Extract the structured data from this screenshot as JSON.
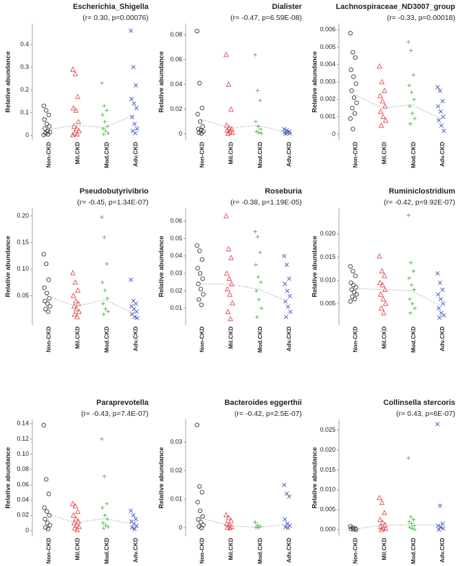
{
  "chart_data": [
    {
      "type": "strip",
      "title": "Escherichia_Shigella",
      "subtitle": "(r= 0.30, p=0.00076)",
      "ylabel": "Relative abundance",
      "categories": [
        "Non-CKD",
        "Mil.CKD",
        "Mod.CKD",
        "Adv.CKD"
      ],
      "colors": [
        "#333333",
        "#e8474b",
        "#4ab54a",
        "#3a4fbf"
      ],
      "markers": [
        "circle",
        "triangle",
        "plus",
        "cross"
      ],
      "values": [
        [
          0.13,
          0.11,
          0.09,
          0.07,
          0.05,
          0.04,
          0.03,
          0.02,
          0.015,
          0.01,
          0.005,
          0.002
        ],
        [
          0.29,
          0.27,
          0.17,
          0.12,
          0.11,
          0.06,
          0.04,
          0.03,
          0.02,
          0.01,
          0.005,
          0.002
        ],
        [
          0.23,
          0.13,
          0.11,
          0.09,
          0.06,
          0.04,
          0.03,
          0.02,
          0.01,
          0.005
        ],
        [
          0.46,
          0.3,
          0.22,
          0.16,
          0.14,
          0.12,
          0.08,
          0.05,
          0.03,
          0.02,
          0.01
        ]
      ],
      "trend": [
        0.025,
        0.045,
        0.035,
        0.09
      ],
      "ylim": [
        -0.01,
        0.48
      ],
      "yticks": [
        0,
        0.1,
        0.2,
        0.3,
        0.4
      ]
    },
    {
      "type": "strip",
      "title": "Dialister",
      "subtitle": "(r= -0.47, p=6.59E-08)",
      "ylabel": "Relative abundance",
      "categories": [
        "Non-CKD",
        "Mil.CKD",
        "Mod.CKD",
        "Adv.CKD"
      ],
      "colors": [
        "#333333",
        "#e8474b",
        "#4ab54a",
        "#3a4fbf"
      ],
      "markers": [
        "circle",
        "triangle",
        "plus",
        "cross"
      ],
      "values": [
        [
          0.083,
          0.041,
          0.021,
          0.016,
          0.01,
          0.006,
          0.004,
          0.003,
          0.002,
          0.001,
          0.0005
        ],
        [
          0.064,
          0.04,
          0.02,
          0.007,
          0.005,
          0.004,
          0.003,
          0.002,
          0.001,
          0.0005
        ],
        [
          0.064,
          0.035,
          0.027,
          0.01,
          0.006,
          0.004,
          0.002,
          0.001,
          0.0005
        ],
        [
          0.004,
          0.003,
          0.002,
          0.0015,
          0.001,
          0.0005,
          0.0002
        ]
      ],
      "trend": [
        0.012,
        0.005,
        0.007,
        0.001
      ],
      "ylim": [
        -0.003,
        0.087
      ],
      "yticks": [
        0,
        0.02,
        0.04,
        0.06,
        0.08
      ]
    },
    {
      "type": "strip",
      "title": "Lachnospiraceae_ND3007_group",
      "subtitle": "(r= -0.33, p=0.00018)",
      "ylabel": "Relative abundance",
      "categories": [
        "Non-CKD",
        "Mil.CKD",
        "Mod.CKD",
        "Adv.CKD"
      ],
      "colors": [
        "#333333",
        "#e8474b",
        "#4ab54a",
        "#3a4fbf"
      ],
      "markers": [
        "circle",
        "triangle",
        "plus",
        "cross"
      ],
      "values": [
        [
          0.0058,
          0.0047,
          0.0044,
          0.0037,
          0.0033,
          0.0029,
          0.0025,
          0.0021,
          0.0018,
          0.0015,
          0.0012,
          0.0009,
          0.0003
        ],
        [
          0.0039,
          0.003,
          0.0025,
          0.0022,
          0.0019,
          0.0016,
          0.0013,
          0.001,
          0.0008,
          0.0005
        ],
        [
          0.0053,
          0.0048,
          0.0034,
          0.0028,
          0.0024,
          0.002,
          0.0016,
          0.0012,
          0.0009,
          0.0006
        ],
        [
          0.0027,
          0.0025,
          0.0019,
          0.0016,
          0.0013,
          0.001,
          0.0008,
          0.0005,
          0.0002
        ]
      ],
      "trend": [
        0.0023,
        0.0015,
        0.0017,
        0.0009
      ],
      "ylim": [
        -0.0002,
        0.0062
      ],
      "yticks": [
        0,
        0.001,
        0.002,
        0.003,
        0.004,
        0.005,
        0.006
      ]
    },
    {
      "type": "strip",
      "title": "Pseudobutyrivibrio",
      "subtitle": "(r= -0.45, p=1.34E-07)",
      "ylabel": "Relative abundance",
      "categories": [
        "Non-CKD",
        "Mil.CKD",
        "Mod.CKD",
        "Adv.CKD"
      ],
      "colors": [
        "#333333",
        "#e8474b",
        "#4ab54a",
        "#3a4fbf"
      ],
      "markers": [
        "circle",
        "triangle",
        "plus",
        "cross"
      ],
      "values": [
        [
          0.128,
          0.11,
          0.08,
          0.065,
          0.055,
          0.045,
          0.04,
          0.035,
          0.03,
          0.025,
          0.02
        ],
        [
          0.093,
          0.075,
          0.06,
          0.05,
          0.04,
          0.035,
          0.03,
          0.025,
          0.02,
          0.015,
          0.01
        ],
        [
          0.198,
          0.16,
          0.11,
          0.075,
          0.06,
          0.045,
          0.035,
          0.025,
          0.02,
          0.015
        ],
        [
          0.08,
          0.04,
          0.035,
          0.03,
          0.025,
          0.02,
          0.015,
          0.01,
          0.008
        ]
      ],
      "trend": [
        0.05,
        0.03,
        0.042,
        0.017
      ],
      "ylim": [
        0,
        0.21
      ],
      "yticks": [
        0.05,
        {
          "value": 0.1,
          "label": "0.10"
        },
        0.15,
        {
          "value": 0.2,
          "label": "0.20"
        }
      ]
    },
    {
      "type": "strip",
      "title": "Roseburia",
      "subtitle": "(r= -0.38, p=1.19E-05)",
      "ylabel": "Relative abundance",
      "categories": [
        "Non-CKD",
        "Mil.CKD",
        "Mod.CKD",
        "Adv.CKD"
      ],
      "colors": [
        "#333333",
        "#e8474b",
        "#4ab54a",
        "#3a4fbf"
      ],
      "markers": [
        "circle",
        "triangle",
        "plus",
        "cross"
      ],
      "values": [
        [
          0.046,
          0.043,
          0.038,
          0.033,
          0.03,
          0.027,
          0.024,
          0.021,
          0.018,
          0.015,
          0.012
        ],
        [
          0.063,
          0.044,
          0.039,
          0.03,
          0.027,
          0.024,
          0.021,
          0.018,
          0.013,
          0.008,
          0.004
        ],
        [
          0.054,
          0.051,
          0.042,
          0.035,
          0.028,
          0.025,
          0.02,
          0.015,
          0.01,
          0.005
        ],
        [
          0.04,
          0.035,
          0.027,
          0.024,
          0.02,
          0.017,
          0.014,
          0.011,
          0.008,
          0.005
        ]
      ],
      "trend": [
        0.024,
        0.024,
        0.021,
        0.014
      ],
      "ylim": [
        0.002,
        0.066
      ],
      "yticks": [
        0.01,
        0.02,
        0.03,
        0.04,
        0.05,
        0.06
      ]
    },
    {
      "type": "strip",
      "title": "Ruminiclostridium",
      "subtitle": "(r= -0.42, p=9.92E-07)",
      "ylabel": "Relative abundance",
      "categories": [
        "Non-CKD",
        "Mil.CKD",
        "Mod.CKD",
        "Adv.CKD"
      ],
      "colors": [
        "#333333",
        "#e8474b",
        "#4ab54a",
        "#3a4fbf"
      ],
      "markers": [
        "circle",
        "triangle",
        "plus",
        "cross"
      ],
      "values": [
        [
          0.013,
          0.012,
          0.011,
          0.0095,
          0.009,
          0.0085,
          0.008,
          0.0075,
          0.007,
          0.0065,
          0.006,
          0.0055
        ],
        [
          0.0152,
          0.012,
          0.011,
          0.0095,
          0.009,
          0.008,
          0.007,
          0.006,
          0.005,
          0.004,
          0.003
        ],
        [
          0.024,
          0.0138,
          0.012,
          0.0105,
          0.009,
          0.008,
          0.006,
          0.005,
          0.004,
          0.003
        ],
        [
          0.0115,
          0.0095,
          0.008,
          0.007,
          0.006,
          0.005,
          0.004,
          0.003,
          0.0025,
          0.002
        ]
      ],
      "trend": [
        0.0083,
        0.008,
        0.0078,
        0.0045
      ],
      "ylim": [
        0.001,
        0.025
      ],
      "yticks": [
        0.005,
        {
          "value": 0.01,
          "label": "0.010"
        },
        0.015,
        {
          "value": 0.02,
          "label": "0.020"
        }
      ]
    },
    {
      "type": "strip",
      "title": "Paraprevotella",
      "subtitle": "(r= -0.43, p=7.4E-07)",
      "ylabel": "Relative abundance",
      "categories": [
        "Non-CKD",
        "Mil.CKD",
        "Mod.CKD",
        "Adv.CKD"
      ],
      "colors": [
        "#333333",
        "#e8474b",
        "#4ab54a",
        "#3a4fbf"
      ],
      "markers": [
        "circle",
        "triangle",
        "plus",
        "cross"
      ],
      "values": [
        [
          0.138,
          0.067,
          0.048,
          0.03,
          0.025,
          0.02,
          0.015,
          0.01,
          0.007,
          0.004,
          0.002
        ],
        [
          0.035,
          0.032,
          0.025,
          0.02,
          0.015,
          0.012,
          0.01,
          0.007,
          0.005,
          0.003,
          0.001
        ],
        [
          0.12,
          0.071,
          0.035,
          0.03,
          0.02,
          0.015,
          0.01,
          0.007,
          0.005,
          0.003
        ],
        [
          0.026,
          0.02,
          0.015,
          0.012,
          0.009,
          0.006,
          0.004,
          0.002
        ]
      ],
      "trend": [
        0.022,
        0.01,
        0.016,
        0.008
      ],
      "ylim": [
        -0.004,
        0.142
      ],
      "yticks": [
        0,
        0.02,
        0.04,
        0.06,
        0.08,
        {
          "value": 0.1,
          "label": "0.10"
        },
        0.12,
        0.14
      ]
    },
    {
      "type": "strip",
      "title": "Bacteroides eggerthii",
      "subtitle": "(r= -0.42, p=2.5E-07)",
      "ylabel": "Relative abundance",
      "categories": [
        "Non-CKD",
        "Mil.CKD",
        "Mod.CKD",
        "Adv.CKD"
      ],
      "colors": [
        "#333333",
        "#e8474b",
        "#4ab54a",
        "#3a4fbf"
      ],
      "markers": [
        "circle",
        "triangle",
        "plus",
        "cross"
      ],
      "values": [
        [
          0.036,
          0.0145,
          0.0125,
          0.009,
          0.006,
          0.004,
          0.003,
          0.002,
          0.001,
          0.0005,
          0
        ],
        [
          0.0045,
          0.0035,
          0.0025,
          0.0015,
          0.001,
          0.0005,
          0.0002,
          0
        ],
        [
          0.002,
          0.001,
          0.0005,
          0.0002,
          0
        ],
        [
          0.015,
          0.012,
          0.011,
          0.003,
          0.0015,
          0.0008,
          0.0003,
          0
        ]
      ],
      "trend": [
        0.0035,
        0.0008,
        0.0002,
        0.0012
      ],
      "ylim": [
        -0.002,
        0.037
      ],
      "yticks": [
        0,
        0.01,
        0.02,
        0.03
      ]
    },
    {
      "type": "strip",
      "title": "Collinsella stercoris",
      "subtitle": "(r= 0.43, p=6E-07)",
      "ylabel": "Relative abundance",
      "categories": [
        "Non-CKD",
        "Mil.CKD",
        "Mod.CKD",
        "Adv.CKD"
      ],
      "colors": [
        "#333333",
        "#e8474b",
        "#4ab54a",
        "#3a4fbf"
      ],
      "markers": [
        "circle",
        "triangle",
        "plus",
        "cross"
      ],
      "values": [
        [
          0.0008,
          0.0005,
          0.0003,
          0.0002,
          0.0001,
          0
        ],
        [
          0.008,
          0.0068,
          0.0042,
          0.0025,
          0.0018,
          0.0012,
          0.0008,
          0.0004,
          0.0002,
          0
        ],
        [
          0.018,
          0.0032,
          0.0025,
          0.002,
          0.0015,
          0.001,
          0.0006,
          0.0003,
          0
        ],
        [
          0.0265,
          0.006,
          0.0015,
          0.001,
          0.0006,
          0.0003,
          0
        ]
      ],
      "trend": [
        0.0001,
        0.0012,
        0.0012,
        0.0012
      ],
      "ylim": [
        -0.001,
        0.027
      ],
      "yticks": [
        {
          "value": 0,
          "label": "0.000"
        },
        0.005,
        {
          "value": 0.01,
          "label": "0.010"
        },
        0.015,
        {
          "value": 0.02,
          "label": "0.020"
        },
        0.025
      ]
    }
  ]
}
